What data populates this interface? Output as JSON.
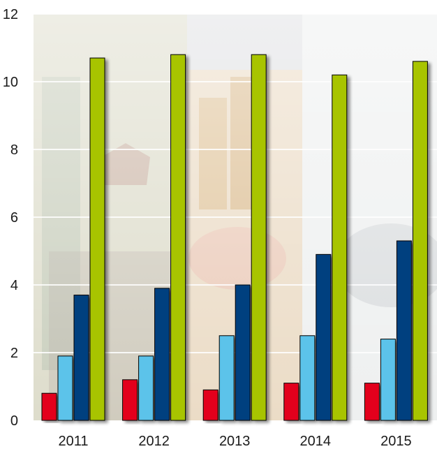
{
  "chart_data": {
    "type": "bar",
    "categories": [
      "2011",
      "2012",
      "2013",
      "2014",
      "2015"
    ],
    "series": [
      {
        "values": [
          0.8,
          1.2,
          0.9,
          1.1,
          1.1
        ],
        "color": "#e3001b"
      },
      {
        "values": [
          1.9,
          1.9,
          2.5,
          2.5,
          2.4
        ],
        "color": "#5bc3ea"
      },
      {
        "values": [
          3.7,
          3.9,
          4.0,
          4.9,
          5.3
        ],
        "color": "#003f7f"
      },
      {
        "values": [
          10.7,
          10.8,
          10.8,
          10.2,
          10.6
        ],
        "color": "#a8c400"
      }
    ],
    "ylim": [
      0,
      12
    ],
    "yticks": [
      0,
      2,
      4,
      6,
      8,
      10,
      12
    ],
    "grid": true,
    "legend": "none",
    "background": "faded photo collage (Moroccan banknote, stacked coins, hands)"
  }
}
